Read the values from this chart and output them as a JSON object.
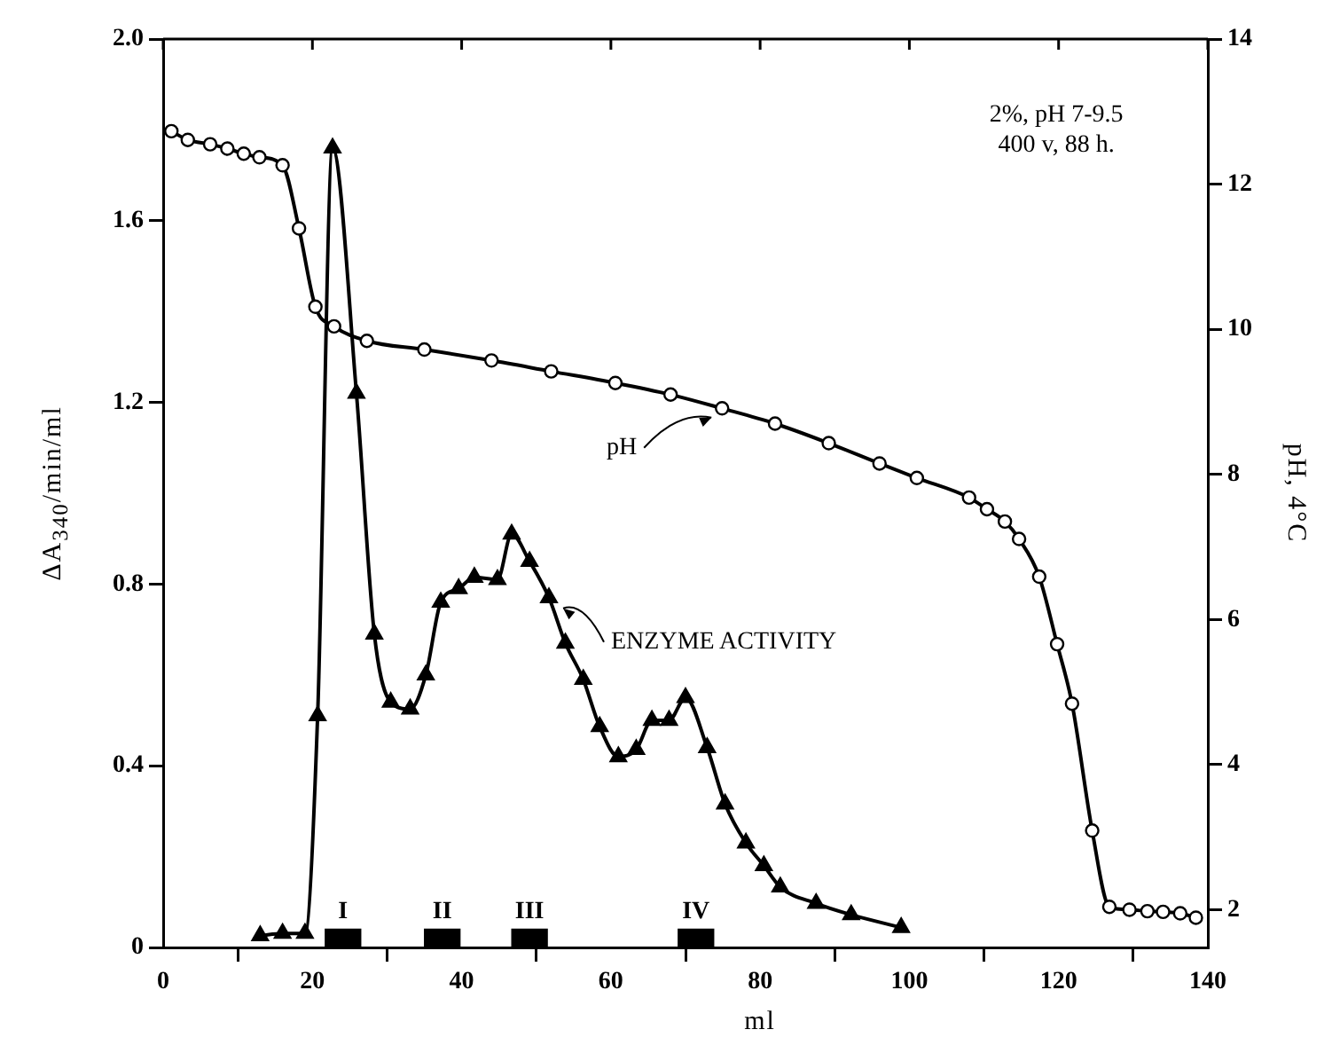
{
  "chart_data": {
    "type": "line",
    "xlabel": "ml",
    "ylabel": "ΔA$_{340}$/min/ml",
    "y2label": "pH, 4°C",
    "xlim": [
      0,
      140
    ],
    "xticks": [
      0,
      20,
      40,
      60,
      80,
      100,
      120,
      140
    ],
    "ylim": [
      0,
      2
    ],
    "yticks": [
      0,
      0.4,
      0.8,
      1.2,
      1.6,
      {
        "value": 2,
        "label": "2.0"
      }
    ],
    "y2lim": [
      1.48,
      14
    ],
    "y2ticks": [
      2,
      4,
      6,
      8,
      10,
      12,
      14
    ],
    "grid": false,
    "legend": false,
    "line_style": "solid",
    "series": [
      {
        "type": "bar",
        "color": "#000000",
        "x": [
          24.1,
          37.4,
          49.1,
          71.4
        ],
        "values": [
          0.04,
          0.04,
          0.04,
          0.04
        ]
      },
      {
        "marker": "triangle",
        "color": "#000000",
        "x": [
          13.0,
          16.0,
          19.0,
          20.7,
          22.7,
          25.9,
          28.3,
          30.5,
          33.1,
          35.2,
          37.2,
          39.6,
          41.7,
          44.8,
          46.7,
          49.1,
          51.7,
          53.9,
          56.3,
          58.5,
          61.0,
          63.4,
          65.5,
          67.8,
          70.0,
          72.9,
          75.3,
          78.1,
          80.5,
          82.7,
          87.5,
          92.2,
          98.9
        ],
        "values": [
          0.026,
          0.031,
          0.031,
          0.51,
          1.76,
          1.22,
          0.69,
          0.54,
          0.525,
          0.6,
          0.76,
          0.79,
          0.815,
          0.81,
          0.91,
          0.85,
          0.77,
          0.67,
          0.59,
          0.486,
          0.42,
          0.436,
          0.5,
          0.5,
          0.55,
          0.44,
          0.316,
          0.23,
          0.18,
          0.133,
          0.097,
          0.072,
          0.044
        ]
      },
      {
        "marker": "circle",
        "axis": "y2",
        "color": "#000000",
        "x": [
          1.1,
          3.3,
          6.3,
          8.6,
          10.8,
          12.9,
          16.0,
          18.2,
          20.4,
          22.9,
          27.3,
          35,
          44,
          52,
          60.6,
          68,
          74.9,
          82,
          89.2,
          96,
          101,
          108,
          110.4,
          112.8,
          114.7,
          117.4,
          119.8,
          121.8,
          124.5,
          126.8,
          129.5,
          131.9,
          134,
          136.3,
          138.4
        ],
        "values": [
          12.73,
          12.61,
          12.55,
          12.49,
          12.42,
          12.37,
          12.26,
          11.39,
          10.31,
          10.04,
          9.84,
          9.72,
          9.57,
          9.42,
          9.26,
          9.1,
          8.91,
          8.7,
          8.43,
          8.15,
          7.95,
          7.68,
          7.52,
          7.35,
          7.11,
          6.59,
          5.66,
          4.84,
          3.09,
          2.04,
          2.0,
          1.98,
          1.97,
          1.95,
          1.89
        ]
      }
    ],
    "annotations": [
      "2%, pH 7-9.5",
      "400 v, 88 h.",
      {
        "text": "pH",
        "x": 74.9,
        "y": 1.19
      },
      {
        "text": "ENZYME ACTIVITY",
        "x": 51.7,
        "y": 0.77
      },
      {
        "text": "I",
        "x": 24.1,
        "y": 0.04
      },
      {
        "text": "II",
        "x": 37.4,
        "y": 0.04
      },
      {
        "text": "III",
        "x": 49.1,
        "y": 0.04
      },
      {
        "text": "IV",
        "x": 71.4,
        "y": 0.04
      }
    ]
  }
}
